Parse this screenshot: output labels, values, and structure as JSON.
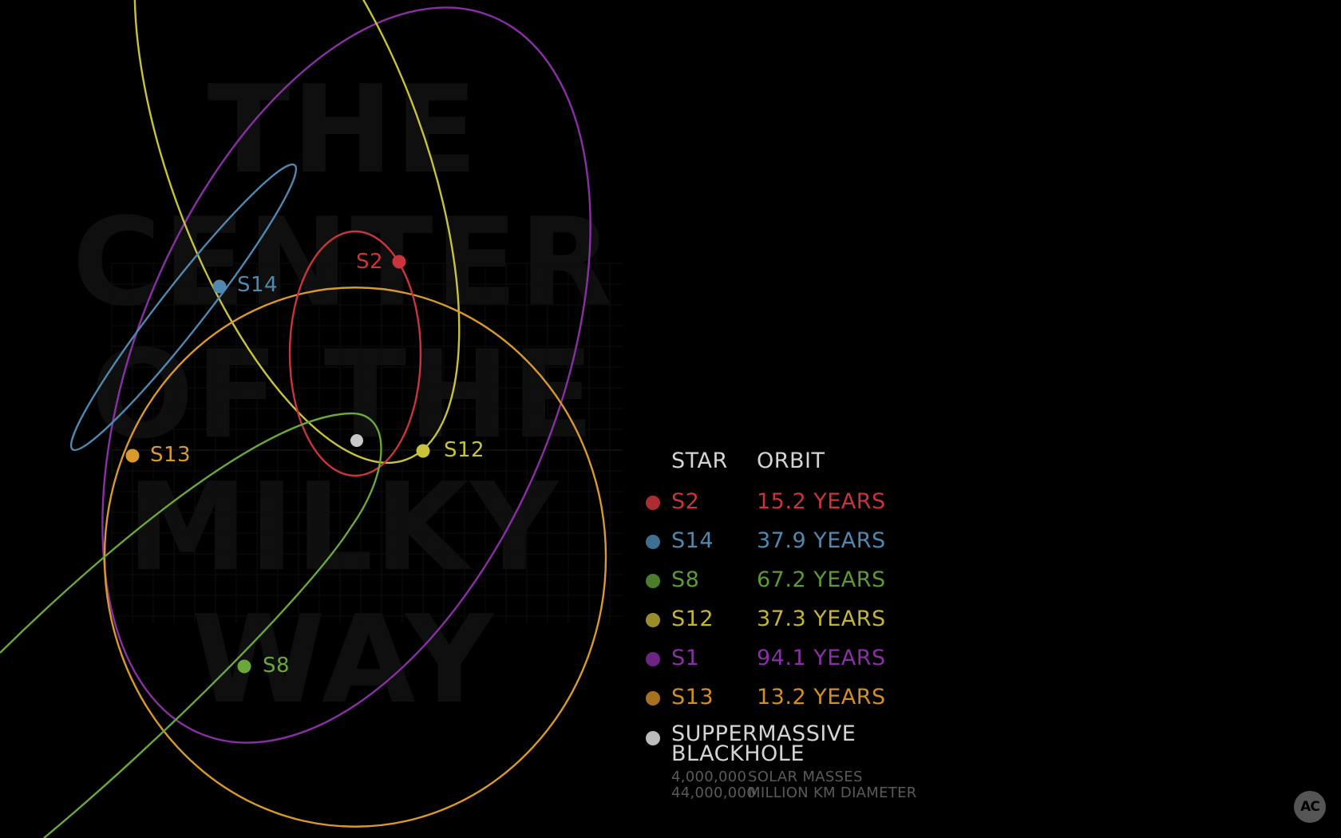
{
  "background_title": [
    "THE",
    "CENTER",
    "OF THE",
    "MILKY",
    "WAY"
  ],
  "legend": {
    "header": {
      "star": "STAR",
      "orbit": "ORBIT"
    },
    "rows": [
      {
        "star": "S2",
        "orbit": "15.2 YEARS",
        "color": "#c9353a"
      },
      {
        "star": "S14",
        "orbit": "37.9 YEARS",
        "color": "#4f88b0"
      },
      {
        "star": "S8",
        "orbit": "67.2 YEARS",
        "color": "#5e9a34"
      },
      {
        "star": "S12",
        "orbit": "37.3 YEARS",
        "color": "#c4b634"
      },
      {
        "star": "S1",
        "orbit": "94.1 YEARS",
        "color": "#8a2fa5"
      },
      {
        "star": "S13",
        "orbit": "13.2 YEARS",
        "color": "#d18f25"
      }
    ],
    "blackhole": {
      "name": "SUPPERMASSIVE BLACKHOLE",
      "color": "#c8c8c8",
      "stats": [
        {
          "value": "4,000,000",
          "label": "SOLAR MASSES"
        },
        {
          "value": "44,000,000",
          "label": "MILLION KM DIAMETER"
        }
      ]
    }
  },
  "diagram_labels": {
    "S2": "S2",
    "S14": "S14",
    "S8": "S8",
    "S12": "S12",
    "S13": "S13"
  },
  "logo_text": "AC",
  "colors": {
    "S2": "#c9353a",
    "S14": "#4f88b0",
    "S8": "#6aa83a",
    "S12": "#c8c33a",
    "S1": "#8a2fa5",
    "S13": "#d99a2b",
    "blackhole": "#c8c8c8",
    "background": "#000000"
  }
}
